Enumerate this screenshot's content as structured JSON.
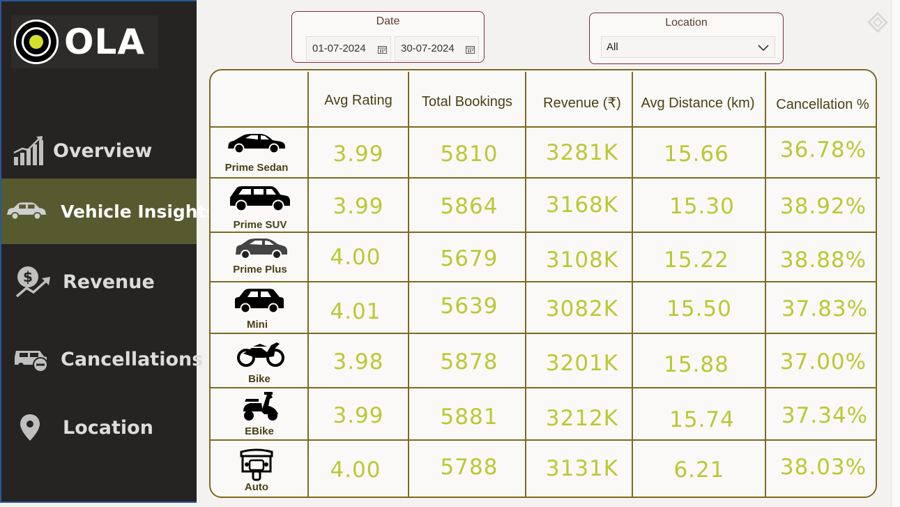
{
  "brand": {
    "logo_text": "OLA"
  },
  "sidebar": {
    "items": [
      {
        "label": "Overview",
        "icon": "growth-chart-icon",
        "active": false
      },
      {
        "label": "Vehicle Insights",
        "icon": "car-icon",
        "active": true
      },
      {
        "label": "Revenue",
        "icon": "money-growth-icon",
        "active": false
      },
      {
        "label": "Cancellations",
        "icon": "car-cancel-icon",
        "active": false
      },
      {
        "label": "Location",
        "icon": "map-pin-icon",
        "active": false
      }
    ]
  },
  "filters": {
    "date": {
      "title": "Date",
      "start": "01-07-2024",
      "end": "30-07-2024"
    },
    "location": {
      "title": "Location",
      "selected": "All"
    }
  },
  "table": {
    "columns": [
      "Avg Rating",
      "Total Bookings",
      "Revenue (₹)",
      "Avg Distance (km)",
      "Cancellation %"
    ],
    "rows": [
      {
        "vehicle": "Prime Sedan",
        "icon": "sedan-icon",
        "values": [
          "3.99",
          "5810",
          "3281K",
          "15.66",
          "36.78%"
        ]
      },
      {
        "vehicle": "Prime SUV",
        "icon": "suv-icon",
        "values": [
          "3.99",
          "5864",
          "3168K",
          "15.30",
          "38.92%"
        ]
      },
      {
        "vehicle": "Prime Plus",
        "icon": "hatchback-icon",
        "values": [
          "4.00",
          "5679",
          "3108K",
          "15.22",
          "38.88%"
        ]
      },
      {
        "vehicle": "Mini",
        "icon": "mini-car-icon",
        "values": [
          "4.01",
          "5639",
          "3082K",
          "15.50",
          "37.83%"
        ]
      },
      {
        "vehicle": "Bike",
        "icon": "motorbike-icon",
        "values": [
          "3.98",
          "5878",
          "3201K",
          "15.88",
          "37.00%"
        ]
      },
      {
        "vehicle": "EBike",
        "icon": "scooter-icon",
        "values": [
          "3.99",
          "5881",
          "3212K",
          "15.74",
          "37.34%"
        ]
      },
      {
        "vehicle": "Auto",
        "icon": "auto-rickshaw-icon",
        "values": [
          "4.00",
          "5788",
          "3131K",
          "6.21",
          "38.03%"
        ]
      }
    ]
  },
  "colors": {
    "accent": "#575a2f",
    "value_text": "#b9c932",
    "header_text": "#4a3f14",
    "grid": "#7a6a21",
    "slicer_border": "#7b2d3b"
  }
}
